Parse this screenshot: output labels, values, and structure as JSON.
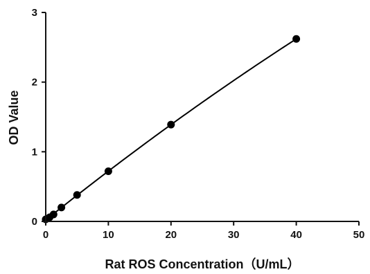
{
  "chart_data": {
    "type": "scatter",
    "title": "",
    "xlabel": "Rat ROS Concentration（U/mL）",
    "ylabel": "OD Value",
    "xlim": [
      0,
      50
    ],
    "ylim": [
      0,
      3
    ],
    "x_ticks": [
      0,
      10,
      20,
      30,
      40,
      50
    ],
    "y_ticks": [
      0,
      1,
      2,
      3
    ],
    "grid": false,
    "legend": "none",
    "fit_curve": true,
    "marker_color": "#000000",
    "line_color": "#000000",
    "series": [
      {
        "x": [
          0,
          0.625,
          1.25,
          2.5,
          5,
          10,
          20,
          40
        ],
        "y": [
          0.03,
          0.06,
          0.1,
          0.2,
          0.38,
          0.72,
          1.39,
          2.62
        ]
      }
    ]
  }
}
